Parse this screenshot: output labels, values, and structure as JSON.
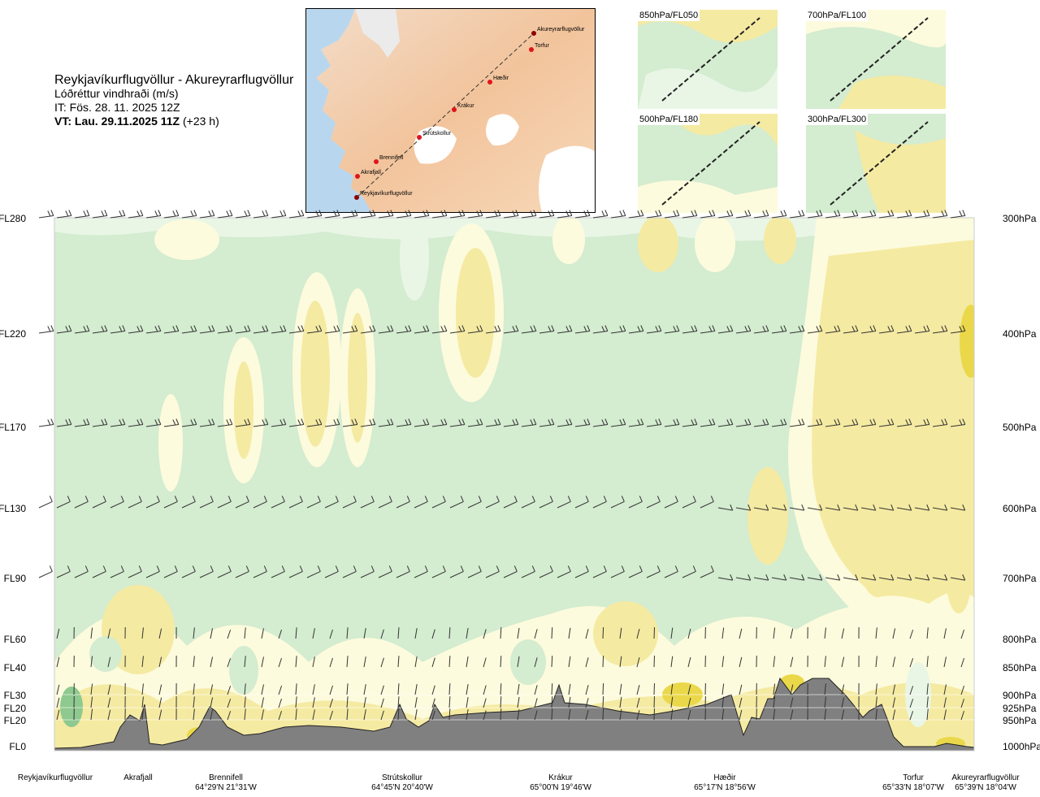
{
  "title": {
    "route": "Reykjavíkurflugvöllur - Akureyrarflugvöllur",
    "parameter": "Lóðréttur vindhraði (m/s)",
    "issue": "IT: Fös. 28. 11. 2025 12Z",
    "valid_bold": "VT: Lau. 29.11.2025 11Z",
    "valid_offset": " (+23 h)"
  },
  "map": {
    "waypoints": [
      "Akureyrarflugvöllur",
      "Torfur",
      "Hæðir",
      "Krákur",
      "Strútskollur",
      "Brennifell",
      "Akrafjall",
      "Reykjavíkurflugvöllur"
    ]
  },
  "mini_maps": [
    {
      "label": "850hPa/FL050"
    },
    {
      "label": "700hPa/FL100"
    },
    {
      "label": "500hPa/FL180"
    },
    {
      "label": "300hPa/FL300"
    }
  ],
  "colors": {
    "green": "#d4ecd0",
    "pale_green": "#e9f6e6",
    "cream": "#fdfbdd",
    "yellow": "#f5eaa2",
    "deep_yellow": "#ead84a",
    "dark_green": "#8ec98f",
    "terrain": "#808080"
  },
  "chart_data": {
    "type": "heatmap",
    "title": "Lóðréttur vindhraði (m/s)",
    "left_axis_labels": [
      "FL280",
      "FL220",
      "FL170",
      "FL130",
      "FL90",
      "FL60",
      "FL40",
      "FL30",
      "FL20",
      "FL20",
      "FL0"
    ],
    "right_axis_labels": [
      "300hPa",
      "400hPa",
      "500hPa",
      "600hPa",
      "700hPa",
      "800hPa",
      "850hPa",
      "900hPa",
      "925hPa",
      "950hPa",
      "1000hPa"
    ],
    "pressure_levels_hpa": [
      300,
      400,
      500,
      600,
      700,
      800,
      850,
      900,
      925,
      950,
      1000
    ],
    "stations": [
      {
        "name": "Reykjavíkurflugvöllur",
        "coord": ""
      },
      {
        "name": "Akrafjall",
        "coord": ""
      },
      {
        "name": "Brennifell",
        "coord": "64°29'N 21°31'W"
      },
      {
        "name": "Strútskollur",
        "coord": "64°45'N 20°40'W"
      },
      {
        "name": "Krákur",
        "coord": "65°00'N 19°46'W"
      },
      {
        "name": "Hæðir",
        "coord": "65°17'N 18°56'W"
      },
      {
        "name": "Torfur",
        "coord": "65°33'N 18°07'W"
      },
      {
        "name": "Akureyrarflugvöllur",
        "coord": "65°39'N 18°04'W"
      }
    ]
  }
}
